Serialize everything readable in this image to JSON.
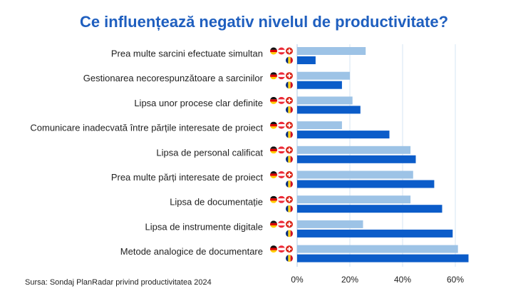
{
  "title": "Ce influențează negativ nivelul de productivitate?",
  "source": "Sursa: Sondaj PlanRadar privind productivitatea 2024",
  "chart_data": {
    "type": "bar",
    "orientation": "horizontal",
    "categories": [
      "Prea multe sarcini efectuate simultan",
      "Gestionarea necorespunzătoare a sarcinilor",
      "Lipsa unor procese clar definite",
      "Comunicare inadecvată între părțile interesate de proiect",
      "Lipsa de personal calificat",
      "Prea multe părți interesate de proiect",
      "Lipsa de documentație",
      "Lipsa de instrumente digitale",
      "Metode analogice de documentare"
    ],
    "series": [
      {
        "flags": "DE / AT / CH",
        "color": "#9dc3e6",
        "values": [
          26,
          20,
          21,
          17,
          43,
          44,
          43,
          25,
          61
        ]
      },
      {
        "flags": "RO",
        "color": "#0b5cc9",
        "values": [
          7,
          17,
          24,
          35,
          45,
          52,
          55,
          59,
          65
        ]
      }
    ],
    "xlim": [
      0,
      65
    ],
    "xticks": [
      "0%",
      "20%",
      "40%",
      "60%"
    ],
    "xtick_values": [
      0,
      20,
      40,
      60
    ],
    "grid": true
  }
}
